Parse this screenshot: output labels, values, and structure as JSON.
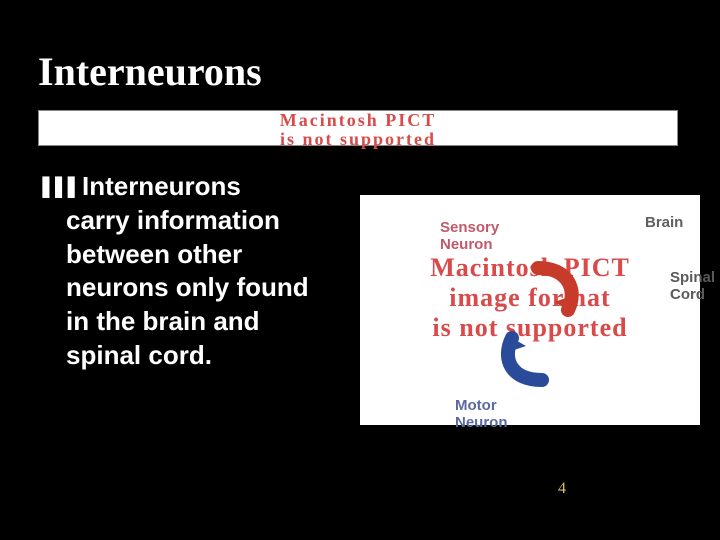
{
  "title": "Interneurons",
  "error_bar": {
    "line1": "Macintosh PICT",
    "line2": "is not supported"
  },
  "bullet": {
    "glyph": "❚❚❚",
    "text_head": "Interneurons",
    "text_rest": "carry information between other neurons only found in the brain and spinal cord."
  },
  "diagram": {
    "error_line1": "Macintosh PICT",
    "error_line2": "image format",
    "error_line3": "is not supported",
    "labels": {
      "sensory": "Sensory\nNeuron",
      "brain": "Brain",
      "spinal": "Spinal\nCord",
      "motor": "Motor\nNeuron"
    },
    "arrow_red_color": "#c83a2a",
    "arrow_blue_color": "#2a4a9a",
    "background": "#ffffff"
  },
  "page_number": "4",
  "colors": {
    "slide_bg": "#000000",
    "title_fg": "#ffffff",
    "body_fg": "#ffffff",
    "error_fg": "#d94a4a",
    "sensory_fg": "#c05a6a",
    "brain_fg": "#606060",
    "spinal_fg": "#5a5a5a",
    "motor_fg": "#5a6aa0",
    "page_num_fg": "#d6c060"
  }
}
